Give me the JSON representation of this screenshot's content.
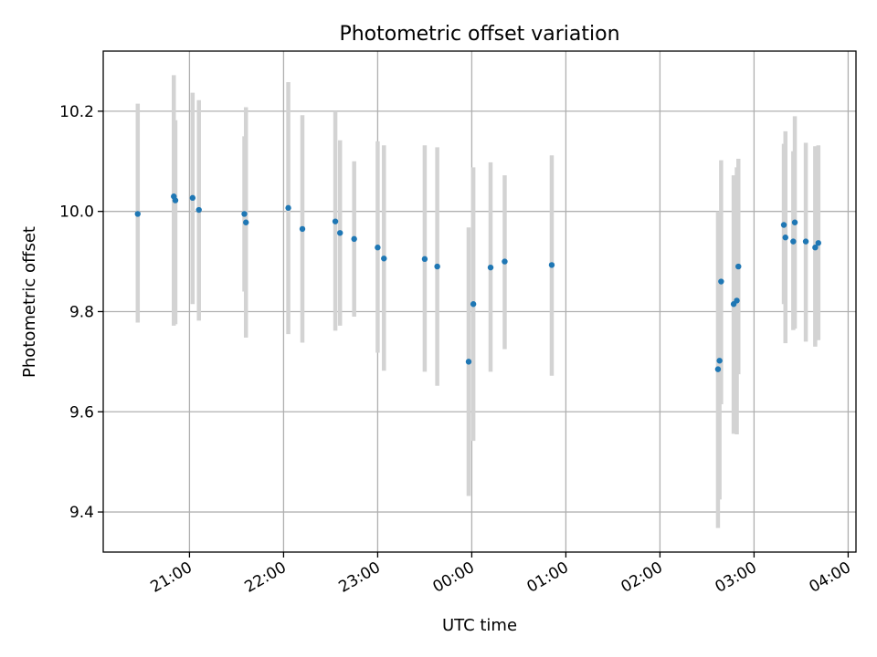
{
  "chart_data": {
    "type": "scatter",
    "title": "Photometric offset variation",
    "xlabel": "UTC time",
    "ylabel": "Photometric offset",
    "grid": true,
    "x_range": [
      "2023-01-01T20:05",
      "2023-01-02T04:05"
    ],
    "ylim": [
      9.32,
      10.32
    ],
    "y_ticks": [
      9.4,
      9.6,
      9.8,
      10.0,
      10.2
    ],
    "x_ticks": [
      {
        "t": "2023-01-01T21:00",
        "label": "21:00"
      },
      {
        "t": "2023-01-01T22:00",
        "label": "22:00"
      },
      {
        "t": "2023-01-01T23:00",
        "label": "23:00"
      },
      {
        "t": "2023-01-02T00:00",
        "label": "00:00"
      },
      {
        "t": "2023-01-02T01:00",
        "label": "01:00"
      },
      {
        "t": "2023-01-02T02:00",
        "label": "02:00"
      },
      {
        "t": "2023-01-02T03:00",
        "label": "03:00"
      },
      {
        "t": "2023-01-02T04:00",
        "label": "04:00"
      }
    ],
    "colors": {
      "point": "#1f77b4",
      "errorbar": "#d3d3d3",
      "grid": "#b0b0b0"
    },
    "points": [
      {
        "t": "2023-01-01T20:27",
        "y": 9.995,
        "lo": 9.778,
        "hi": 10.215
      },
      {
        "t": "2023-01-01T20:50",
        "y": 10.03,
        "lo": 9.772,
        "hi": 10.272
      },
      {
        "t": "2023-01-01T20:51",
        "y": 10.022,
        "lo": 9.775,
        "hi": 10.182
      },
      {
        "t": "2023-01-01T21:02",
        "y": 10.027,
        "lo": 9.815,
        "hi": 10.237
      },
      {
        "t": "2023-01-01T21:06",
        "y": 10.003,
        "lo": 9.782,
        "hi": 10.222
      },
      {
        "t": "2023-01-01T21:35",
        "y": 9.995,
        "lo": 9.84,
        "hi": 10.15
      },
      {
        "t": "2023-01-01T21:36",
        "y": 9.978,
        "lo": 9.748,
        "hi": 10.208
      },
      {
        "t": "2023-01-01T22:03",
        "y": 10.007,
        "lo": 9.755,
        "hi": 10.258
      },
      {
        "t": "2023-01-01T22:12",
        "y": 9.965,
        "lo": 9.738,
        "hi": 10.192
      },
      {
        "t": "2023-01-01T22:33",
        "y": 9.98,
        "lo": 9.762,
        "hi": 10.2
      },
      {
        "t": "2023-01-01T22:36",
        "y": 9.957,
        "lo": 9.772,
        "hi": 10.142
      },
      {
        "t": "2023-01-01T22:45",
        "y": 9.945,
        "lo": 9.79,
        "hi": 10.1
      },
      {
        "t": "2023-01-01T23:00",
        "y": 9.928,
        "lo": 9.718,
        "hi": 10.14
      },
      {
        "t": "2023-01-01T23:04",
        "y": 9.906,
        "lo": 9.682,
        "hi": 10.132
      },
      {
        "t": "2023-01-01T23:30",
        "y": 9.905,
        "lo": 9.68,
        "hi": 10.132
      },
      {
        "t": "2023-01-01T23:38",
        "y": 9.89,
        "lo": 9.652,
        "hi": 10.128
      },
      {
        "t": "2023-01-01T23:58",
        "y": 9.7,
        "lo": 9.432,
        "hi": 9.968
      },
      {
        "t": "2023-01-02T00:01",
        "y": 9.815,
        "lo": 9.542,
        "hi": 10.088
      },
      {
        "t": "2023-01-02T00:12",
        "y": 9.888,
        "lo": 9.68,
        "hi": 10.098
      },
      {
        "t": "2023-01-02T00:21",
        "y": 9.9,
        "lo": 9.725,
        "hi": 10.072
      },
      {
        "t": "2023-01-02T00:51",
        "y": 9.893,
        "lo": 9.672,
        "hi": 10.112
      },
      {
        "t": "2023-01-02T02:37",
        "y": 9.685,
        "lo": 9.368,
        "hi": 10.0
      },
      {
        "t": "2023-01-02T02:38",
        "y": 9.702,
        "lo": 9.425,
        "hi": 9.98
      },
      {
        "t": "2023-01-02T02:39",
        "y": 9.86,
        "lo": 9.615,
        "hi": 10.102
      },
      {
        "t": "2023-01-02T02:47",
        "y": 9.815,
        "lo": 9.556,
        "hi": 10.072
      },
      {
        "t": "2023-01-02T02:49",
        "y": 9.822,
        "lo": 9.555,
        "hi": 10.088
      },
      {
        "t": "2023-01-02T02:50",
        "y": 9.89,
        "lo": 9.675,
        "hi": 10.105
      },
      {
        "t": "2023-01-02T03:19",
        "y": 9.973,
        "lo": 9.815,
        "hi": 10.135
      },
      {
        "t": "2023-01-02T03:20",
        "y": 9.948,
        "lo": 9.737,
        "hi": 10.16
      },
      {
        "t": "2023-01-02T03:25",
        "y": 9.94,
        "lo": 9.763,
        "hi": 10.12
      },
      {
        "t": "2023-01-02T03:26",
        "y": 9.978,
        "lo": 9.766,
        "hi": 10.19
      },
      {
        "t": "2023-01-02T03:33",
        "y": 9.94,
        "lo": 9.74,
        "hi": 10.137
      },
      {
        "t": "2023-01-02T03:39",
        "y": 9.928,
        "lo": 9.73,
        "hi": 10.13
      },
      {
        "t": "2023-01-02T03:41",
        "y": 9.937,
        "lo": 9.743,
        "hi": 10.132
      }
    ]
  }
}
